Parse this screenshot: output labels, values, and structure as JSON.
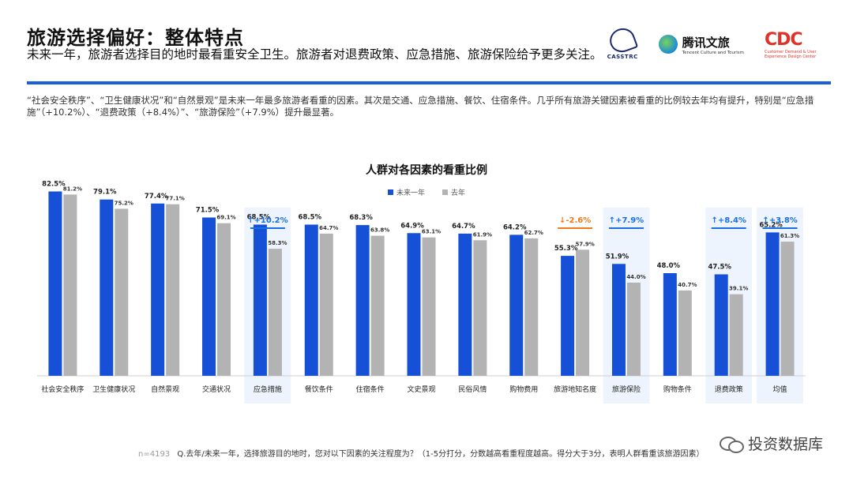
{
  "header": {
    "title": "旅游选择偏好：整体特点",
    "subtitle": "未来一年，旅游者选择目的地时最看重安全卫生。旅游者对退费政策、应急措施、旅游保险给予更多关注。"
  },
  "logos": {
    "casstrc": "CASSTRC",
    "tencent_cn": "腾讯文旅",
    "tencent_en": "Tencent Culture and Tourism",
    "cdc_big": "CDC",
    "cdc_small": "Customer Demand & User Experience Design Center"
  },
  "description": "“社会安全秩序”、“卫生健康状况”和“自然景观”是未来一年最多旅游者看重的因素。其次是交通、应急措施、餐饮、住宿条件。几乎所有旅游关键因素被看重的比例较去年均有提升，特别是“应急措施”（+10.2%）、“退费政策（+8.4%）”、“旅游保险”（+7.9%）提升最显著。",
  "chart_data": {
    "type": "bar",
    "title": "人群对各因素的看重比例",
    "categories": [
      "社会安全秩序",
      "卫生健康状况",
      "自然景观",
      "交通状况",
      "应急措施",
      "餐饮条件",
      "住宿条件",
      "文史景观",
      "民俗风情",
      "购物费用",
      "旅游地知名度",
      "旅游保险",
      "购物条件",
      "退费政策",
      "均值"
    ],
    "series": [
      {
        "name": "未来一年",
        "color": "#1550d6",
        "values": [
          82.5,
          79.1,
          77.4,
          71.5,
          68.5,
          68.5,
          68.3,
          64.9,
          64.7,
          64.2,
          55.3,
          51.9,
          48.0,
          47.5,
          65.2
        ]
      },
      {
        "name": "去年",
        "color": "#b3b3b3",
        "values": [
          81.2,
          75.2,
          77.1,
          69.1,
          58.3,
          64.7,
          63.8,
          63.1,
          61.9,
          62.7,
          57.9,
          44.0,
          40.7,
          39.1,
          61.3
        ]
      }
    ],
    "value_labels_future": [
      "82.5%",
      "79.1%",
      "77.4%",
      "71.5%",
      "68.5%",
      "68.5%",
      "68.3%",
      "64.9%",
      "64.7%",
      "64.2%",
      "55.3%",
      "51.9%",
      "48.0%",
      "47.5%",
      "65.2%"
    ],
    "value_labels_last": [
      "81.2%",
      "75.2%",
      "77.1%",
      "69.1%",
      "58.3%",
      "64.7%",
      "63.8%",
      "63.1%",
      "61.9%",
      "62.7%",
      "57.9%",
      "44.0%",
      "40.7%",
      "39.1%",
      "61.3%"
    ],
    "highlighted_indices": [
      4,
      11,
      13,
      14
    ],
    "annotations": [
      {
        "index": 4,
        "text": "↑+10.2%",
        "color": "#1a6fe6"
      },
      {
        "index": 10,
        "text": "↓-2.6%",
        "color": "#f07a1c"
      },
      {
        "index": 11,
        "text": "↑+7.9%",
        "color": "#1a6fe6"
      },
      {
        "index": 13,
        "text": "↑+8.4%",
        "color": "#1a6fe6"
      },
      {
        "index": 14,
        "text": "↑+3.8%",
        "color": "#1a6fe6"
      }
    ],
    "ylim": [
      0,
      100
    ],
    "grid": false,
    "legend_position": "top-center"
  },
  "footnote": {
    "n": "n=4193",
    "text": "Q.去年/未来一年，选择旅游目的地时，您对以下因素的关注程度为？（1-5分打分，分数越高看重程度越高。得分大于3分，表明人群看重该旅游因素）"
  },
  "watermark": "投资数据库",
  "colors": {
    "accent": "#1b5fd9",
    "future": "#1550d6",
    "last": "#b3b3b3",
    "highlight_bg": "#eef4fd"
  }
}
